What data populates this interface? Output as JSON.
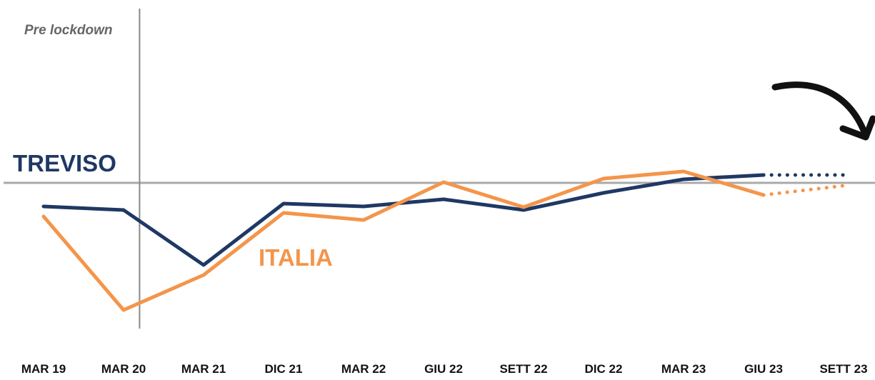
{
  "chart_data": {
    "type": "line",
    "categories": [
      "MAR 19",
      "MAR 20",
      "MAR 21",
      "DIC 21",
      "MAR 22",
      "GIU 22",
      "SETT 22",
      "DIC 22",
      "MAR 23",
      "GIU 23",
      "SETT 23"
    ],
    "series": [
      {
        "name": "TREVISO",
        "color": "#1f3864",
        "values": [
          -16.5,
          -19,
          -57.5,
          -14.5,
          -16.5,
          -11.5,
          -19,
          -7,
          2.5,
          5.5,
          5.5
        ],
        "projection_start": 9
      },
      {
        "name": "ITALIA",
        "color": "#f4954a",
        "values": [
          -23.5,
          -89,
          -64.5,
          -21,
          -26,
          0.5,
          -17,
          3,
          8,
          -8.5,
          -2
        ],
        "projection_start": 9
      }
    ],
    "ylim": [
      -100,
      120
    ],
    "reference_line": 0,
    "divider": {
      "label": "Pre lockdown",
      "position": 1.2
    }
  }
}
